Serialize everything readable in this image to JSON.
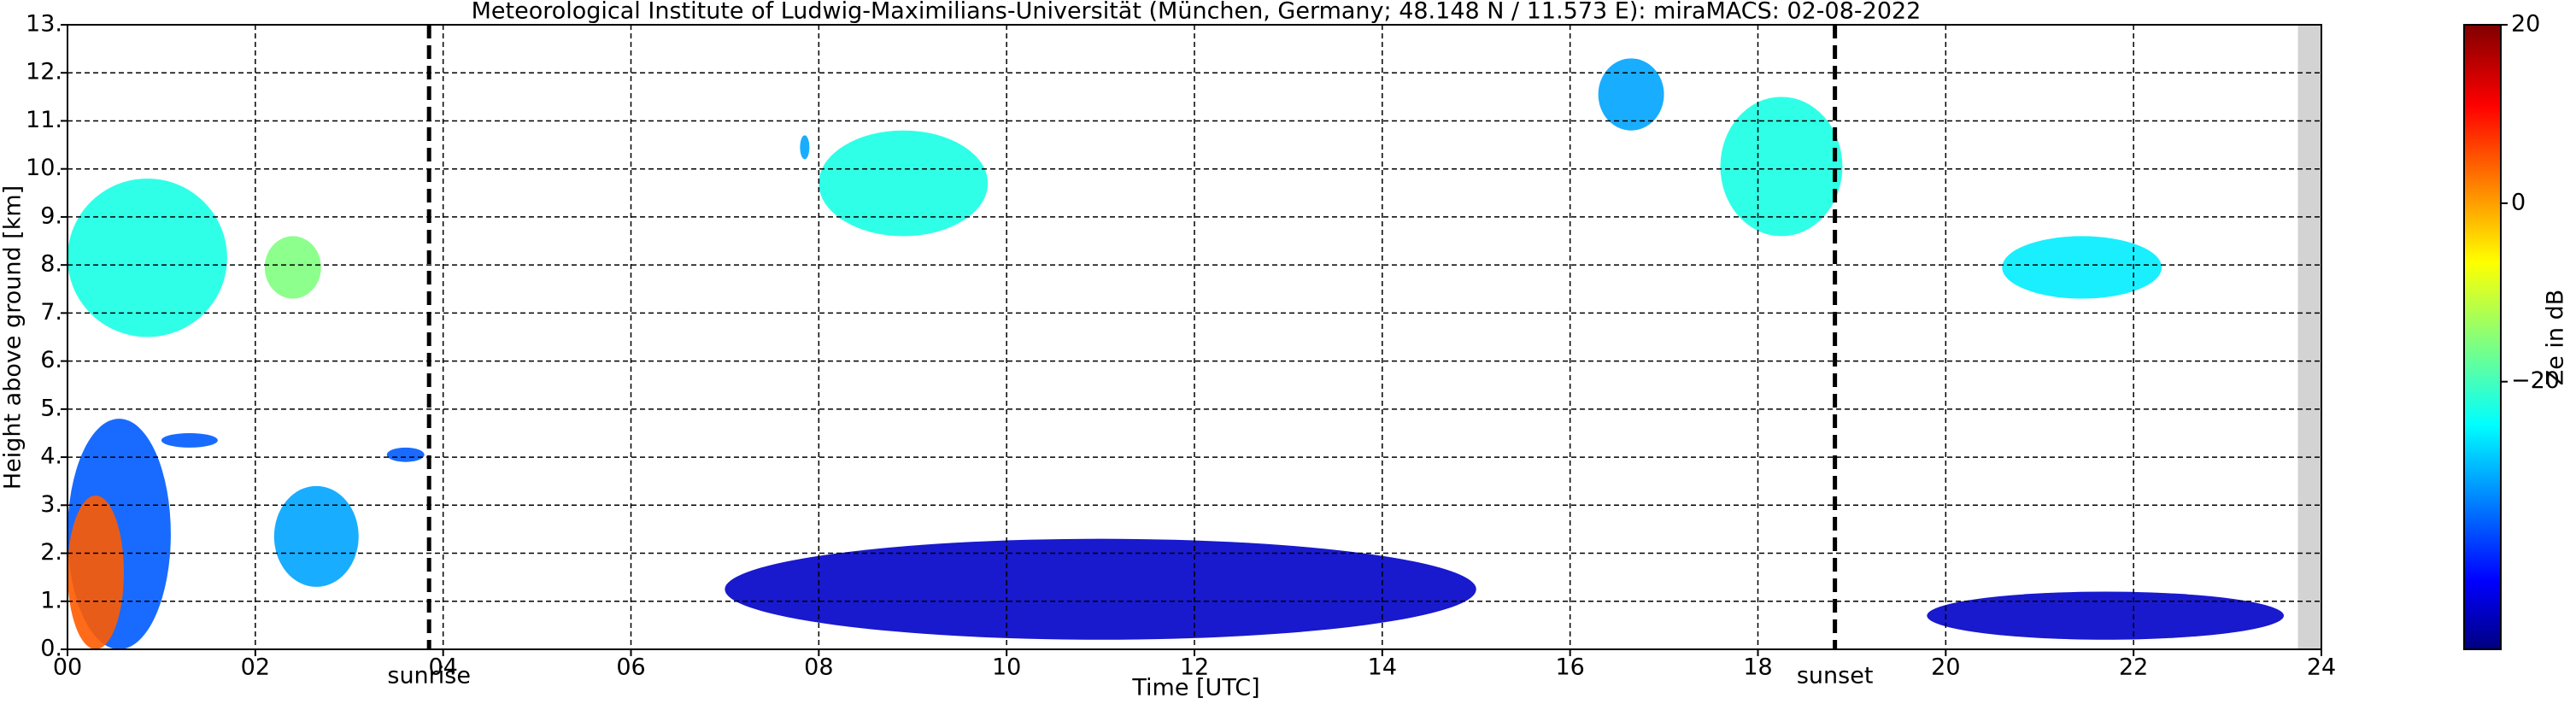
{
  "chart_data": {
    "type": "radar-heatmap",
    "title": "Meteorological Institute of Ludwig-Maximilians-Universität (München, Germany; 48.148 N / 11.573 E):    miraMACS: 02-08-2022",
    "xlabel": "Time [UTC]",
    "ylabel": "Height above ground [km]",
    "colorbar_label": "Ze in dB",
    "xlim": [
      0,
      24
    ],
    "xticks": [
      {
        "value": 0,
        "label": "00"
      },
      {
        "value": 2,
        "label": "02"
      },
      {
        "value": 4,
        "label": "04"
      },
      {
        "value": 6,
        "label": "06"
      },
      {
        "value": 8,
        "label": "08"
      },
      10,
      12,
      14,
      16,
      18,
      20,
      22,
      24
    ],
    "ylim": [
      0,
      13
    ],
    "yticks": [
      {
        "value": 0,
        "label": "0."
      },
      {
        "value": 1,
        "label": "1."
      },
      {
        "value": 2,
        "label": "2."
      },
      {
        "value": 3,
        "label": "3."
      },
      {
        "value": 4,
        "label": "4."
      },
      {
        "value": 5,
        "label": "5."
      },
      {
        "value": 6,
        "label": "6."
      },
      {
        "value": 7,
        "label": "7."
      },
      {
        "value": 8,
        "label": "8."
      },
      {
        "value": 9,
        "label": "9."
      },
      {
        "value": 10,
        "label": "10."
      },
      {
        "value": 11,
        "label": "11."
      },
      {
        "value": 12,
        "label": "12."
      },
      {
        "value": 13,
        "label": "13."
      }
    ],
    "clim": [
      -50,
      20
    ],
    "cticks": [
      20,
      0,
      {
        "value": -20,
        "label": "−20"
      }
    ],
    "colormap": "jet",
    "grid": true,
    "no_data_from": 23.75,
    "events": [
      {
        "name": "sunrise",
        "x": 3.85
      },
      {
        "name": "sunset",
        "x": 18.82
      }
    ],
    "echoes": [
      {
        "x": [
          0,
          1.1
        ],
        "y": [
          0,
          4.8
        ],
        "ze": -35
      },
      {
        "x": [
          0,
          0.6
        ],
        "y": [
          0,
          3.2
        ],
        "ze": 5
      },
      {
        "x": [
          0,
          1.7
        ],
        "y": [
          6.5,
          9.8
        ],
        "ze": -22
      },
      {
        "x": [
          1.0,
          1.6
        ],
        "y": [
          4.2,
          4.5
        ],
        "ze": -35
      },
      {
        "x": [
          2.1,
          2.7
        ],
        "y": [
          7.3,
          8.6
        ],
        "ze": -15
      },
      {
        "x": [
          2.2,
          3.1
        ],
        "y": [
          1.3,
          3.4
        ],
        "ze": -30
      },
      {
        "x": [
          3.4,
          3.8
        ],
        "y": [
          3.9,
          4.2
        ],
        "ze": -35
      },
      {
        "x": [
          7.8,
          7.9
        ],
        "y": [
          10.2,
          10.7
        ],
        "ze": -30
      },
      {
        "x": [
          8.0,
          9.8
        ],
        "y": [
          8.6,
          10.8
        ],
        "ze": -22
      },
      {
        "x": [
          7,
          15
        ],
        "y": [
          0.2,
          2.3
        ],
        "ze": -45
      },
      {
        "x": [
          16.3,
          17.0
        ],
        "y": [
          10.8,
          12.3
        ],
        "ze": -30
      },
      {
        "x": [
          17.6,
          18.9
        ],
        "y": [
          8.6,
          11.5
        ],
        "ze": -22
      },
      {
        "x": [
          20.6,
          22.3
        ],
        "y": [
          7.3,
          8.6
        ],
        "ze": -25
      },
      {
        "x": [
          19.8,
          23.6
        ],
        "y": [
          0.2,
          1.2
        ],
        "ze": -45
      }
    ]
  }
}
